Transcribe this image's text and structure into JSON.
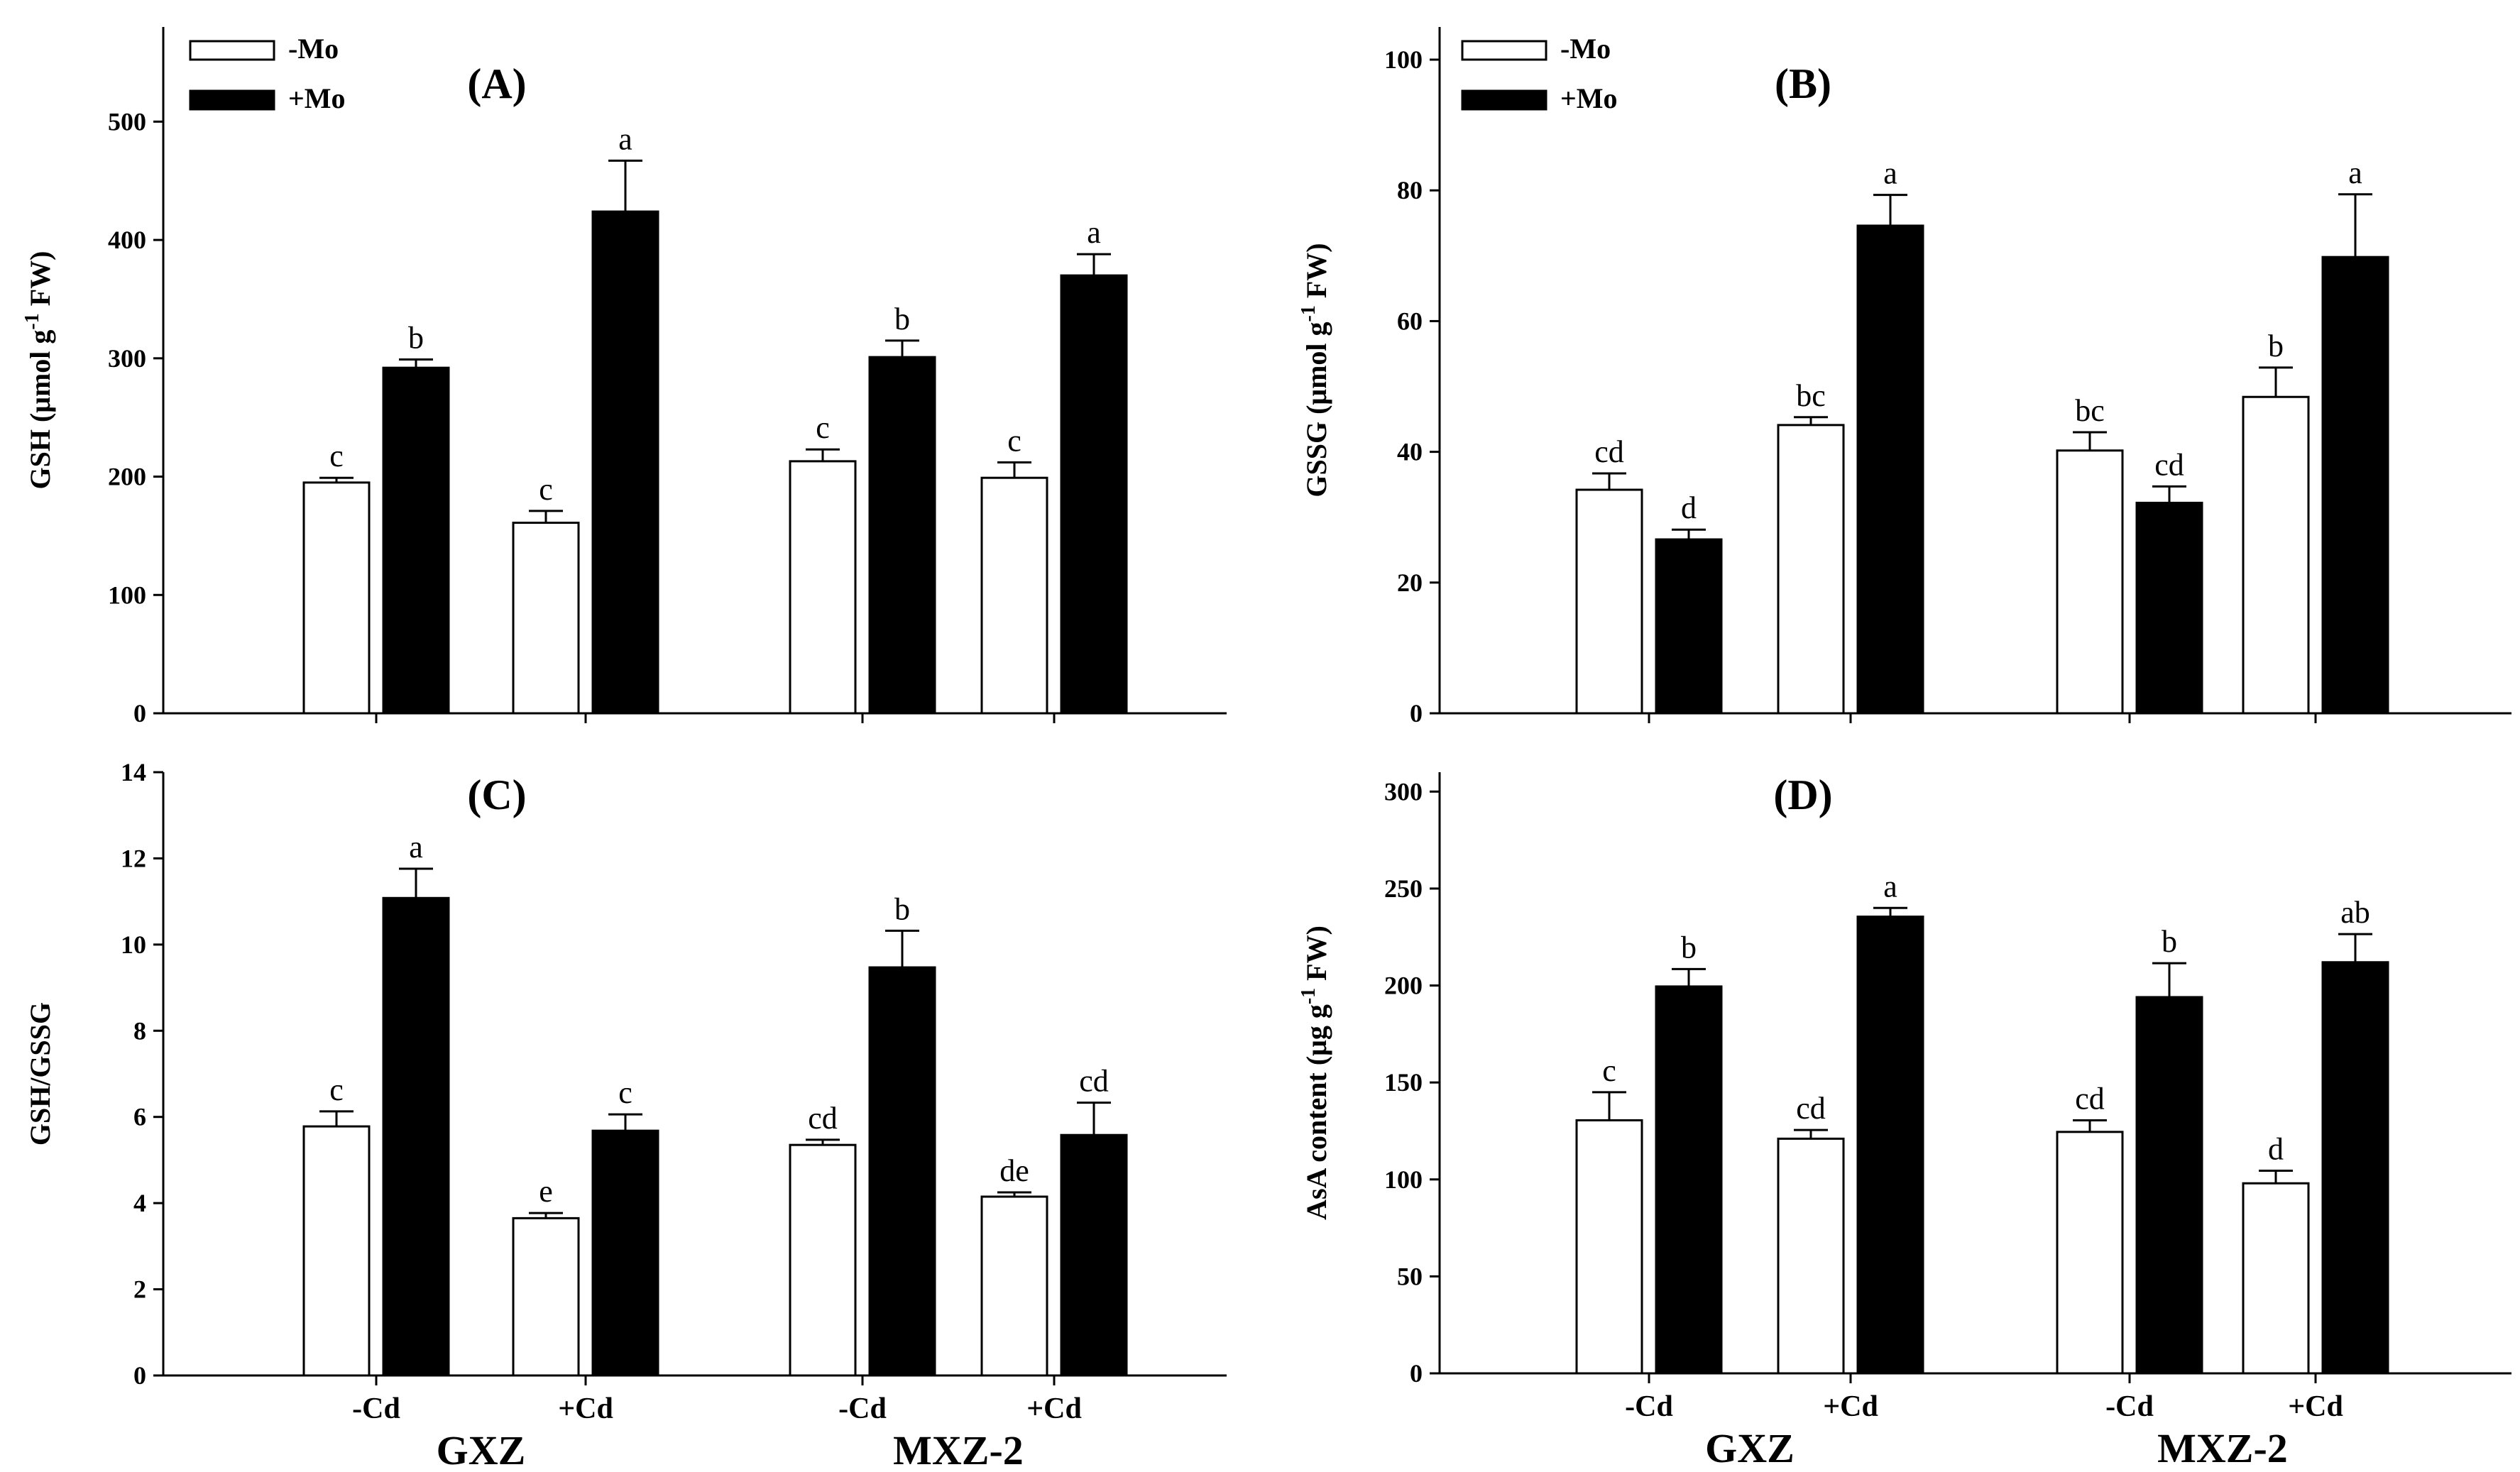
{
  "chart_data": [
    {
      "type": "bar",
      "panel_label": "(A)",
      "ylabel": "GSH (μmol g",
      "ylabel_sup": "-1",
      "ylabel_tail": " FW)",
      "ylim": [
        0,
        580
      ],
      "yticks": [
        0,
        100,
        200,
        300,
        400,
        500
      ],
      "categories": [
        "GXZ -Cd",
        "GXZ +Cd",
        "MXZ-2 -Cd",
        "MXZ-2 +Cd"
      ],
      "series": [
        {
          "name": "-Mo",
          "values": [
            195,
            161,
            213,
            199
          ],
          "errors": [
            4,
            10,
            10,
            13
          ],
          "letters": [
            "c",
            "c",
            "c",
            "c"
          ]
        },
        {
          "name": "+Mo",
          "values": [
            292,
            424,
            301,
            370
          ],
          "errors": [
            7,
            43,
            14,
            18
          ],
          "letters": [
            "b",
            "a",
            "b",
            "a"
          ]
        }
      ],
      "legend": [
        "-Mo",
        "+Mo"
      ]
    },
    {
      "type": "bar",
      "panel_label": "(B)",
      "ylabel": "GSSG (μmol g",
      "ylabel_sup": "-1",
      "ylabel_tail": " FW)",
      "ylim": [
        0,
        105
      ],
      "yticks": [
        0,
        20,
        40,
        60,
        80,
        100
      ],
      "categories": [
        "GXZ -Cd",
        "GXZ +Cd",
        "MXZ-2 -Cd",
        "MXZ-2 +Cd"
      ],
      "series": [
        {
          "name": "-Mo",
          "values": [
            34.2,
            44.1,
            40.2,
            48.4
          ],
          "errors": [
            2.5,
            1.2,
            2.8,
            4.5
          ],
          "letters": [
            "cd",
            "bc",
            "bc",
            "b"
          ]
        },
        {
          "name": "+Mo",
          "values": [
            26.6,
            74.6,
            32.2,
            69.8
          ],
          "errors": [
            1.5,
            4.7,
            2.5,
            9.6
          ],
          "letters": [
            "d",
            "a",
            "cd",
            "a"
          ]
        }
      ],
      "legend": [
        "-Mo",
        "+Mo"
      ]
    },
    {
      "type": "bar",
      "panel_label": "(C)",
      "ylabel": "GSH/GSSG",
      "ylabel_sup": "",
      "ylabel_tail": "",
      "ylim": [
        0,
        14
      ],
      "yticks": [
        0,
        2,
        4,
        6,
        8,
        10,
        12,
        14
      ],
      "categories": [
        "GXZ -Cd",
        "GXZ +Cd",
        "MXZ-2 -Cd",
        "MXZ-2 +Cd"
      ],
      "series": [
        {
          "name": "-Mo",
          "values": [
            5.78,
            3.65,
            5.35,
            4.15
          ],
          "errors": [
            0.35,
            0.12,
            0.12,
            0.1
          ],
          "letters": [
            "c",
            "e",
            "cd",
            "de"
          ]
        },
        {
          "name": "+Mo",
          "values": [
            11.08,
            5.68,
            9.47,
            5.58
          ],
          "errors": [
            0.68,
            0.38,
            0.85,
            0.75
          ],
          "letters": [
            "a",
            "c",
            "b",
            "cd"
          ]
        }
      ]
    },
    {
      "type": "bar",
      "panel_label": "(D)",
      "ylabel": "AsA content (μg g",
      "ylabel_sup": "-1",
      "ylabel_tail": " FW)",
      "ylim": [
        0,
        310
      ],
      "yticks": [
        0,
        50,
        100,
        150,
        200,
        250,
        300
      ],
      "categories": [
        "GXZ -Cd",
        "GXZ +Cd",
        "MXZ-2 -Cd",
        "MXZ-2 +Cd"
      ],
      "series": [
        {
          "name": "-Mo",
          "values": [
            130.5,
            121,
            124.5,
            98
          ],
          "errors": [
            14.5,
            4.5,
            6,
            6.5
          ],
          "letters": [
            "c",
            "cd",
            "cd",
            "d"
          ]
        },
        {
          "name": "+Mo",
          "values": [
            199.5,
            235.5,
            194,
            212
          ],
          "errors": [
            9,
            4.5,
            17.5,
            14.5
          ],
          "letters": [
            "b",
            "a",
            "b",
            "ab"
          ]
        }
      ]
    }
  ],
  "x_cd_labels": [
    "-Cd",
    "+Cd",
    "-Cd",
    "+Cd"
  ],
  "genotypes": [
    "GXZ",
    "MXZ-2"
  ]
}
